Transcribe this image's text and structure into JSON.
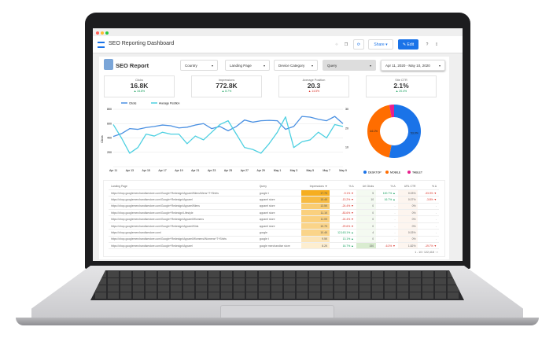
{
  "app": {
    "title": "SEO Reporting Dashboard",
    "share": "Share",
    "edit": "Edit"
  },
  "report": {
    "title": "SEO Report",
    "filters": [
      "Country",
      "Landing Page",
      "Device Category",
      "Query"
    ],
    "date_range": "Apr 11, 2020 - May 10, 2020"
  },
  "kpis": [
    {
      "label": "Clicks",
      "value": "16.8K",
      "delta": "▲ 34.8%",
      "color": "#0f9d58"
    },
    {
      "label": "Impressions",
      "value": "772.8K",
      "delta": "▲ 8.7%",
      "color": "#0f9d58"
    },
    {
      "label": "Average Position",
      "value": "20.3",
      "delta": "▲ 14.5%",
      "color": "#d93025"
    },
    {
      "label": "Site CTR",
      "value": "2.1%",
      "delta": "▲ 20.4%",
      "color": "#0f9d58"
    }
  ],
  "chart_data": [
    {
      "type": "line",
      "ylabel": "Clicks",
      "ylim": [
        0,
        800
      ],
      "y2lim": [
        0,
        30
      ],
      "yticks": [
        "200",
        "400",
        "600",
        "800"
      ],
      "y2ticks": [
        "10",
        "20",
        "30"
      ],
      "xticks": [
        "Apr 11",
        "Apr 13",
        "Apr 15",
        "Apr 17",
        "Apr 19",
        "Apr 21",
        "Apr 23",
        "Apr 25",
        "Apr 27",
        "Apr 29",
        "May 1",
        "May 3",
        "May 5",
        "May 7",
        "May 9"
      ],
      "legend": "top-left",
      "grid": true,
      "series": [
        {
          "name": "Clicks",
          "axis": "left",
          "color": "#4a90e2",
          "values": [
            420,
            460,
            530,
            520,
            545,
            560,
            580,
            570,
            540,
            550,
            580,
            600,
            530,
            560,
            500,
            560,
            650,
            620,
            640,
            645,
            640,
            520,
            560,
            700,
            690,
            660,
            640,
            700,
            600
          ]
        },
        {
          "name": "Average Position",
          "axis": "right",
          "color": "#4dd0e1",
          "values": [
            22,
            15,
            7,
            10,
            17,
            16,
            18,
            17,
            17,
            12,
            16,
            14,
            18,
            22,
            24,
            17,
            10,
            9,
            7,
            12,
            18,
            26,
            10,
            13,
            14,
            18,
            15,
            22,
            21
          ]
        }
      ]
    },
    {
      "type": "pie",
      "donut": true,
      "legend": "bottom",
      "slices": [
        {
          "name": "DESKTOP",
          "value": 53.0,
          "label": "53.0%",
          "color": "#1a73e8"
        },
        {
          "name": "MOBILE",
          "value": 44.1,
          "label": "44.1%",
          "color": "#ff6d00"
        },
        {
          "name": "TABLET",
          "value": 2.9,
          "label": "",
          "color": "#e91e8c"
        }
      ]
    }
  ],
  "table": {
    "headers": [
      "Landing Page",
      "Query",
      "Impressions ▼",
      "% Δ",
      "Url Clicks",
      "% Δ",
      "URL CTR",
      "% Δ"
    ],
    "rows": [
      [
        "https://shop.googlemerchandisestore.com/Google+Redesign/Apparel/Mens/Mens+T+Shirts",
        "google t",
        "17.7K",
        "-9.1% ▼",
        "5",
        "100.7% ▲",
        "0.03%",
        "-33.3% ▼"
      ],
      [
        "https://shop.googlemerchandisestore.com/Google+Redesign/Apparel",
        "apparel store",
        "15.4K",
        "-13.2% ▼",
        "10",
        "16.7% ▲",
        "0.07%",
        "-3.8% ▼"
      ],
      [
        "https://shop.googlemerchandisestore.com/Google+Redesign/Apparel/Mens",
        "apparel store",
        "13.5K",
        "-24.4% ▼",
        "0",
        "-",
        "0%",
        "-"
      ],
      [
        "https://shop.googlemerchandisestore.com/Google+Redesign/Lifestyle",
        "apparel store",
        "11.1K",
        "-83.6% ▼",
        "0",
        "-",
        "0%",
        "-"
      ],
      [
        "https://shop.googlemerchandisestore.com/Google+Redesign/Apparel/Womens",
        "apparel store",
        "11.0K",
        "-24.4% ▼",
        "0",
        "-",
        "0%",
        "-"
      ],
      [
        "https://shop.googlemerchandisestore.com/Google+Redesign/Apparel/Kids",
        "apparel store",
        "10.7K",
        "-29.6% ▼",
        "0",
        "-",
        "0%",
        "-"
      ],
      [
        "https://shop.googlemerchandisestore.com/",
        "google",
        "10.4K",
        "12,163.1% ▲",
        "4",
        "-",
        "0.03%",
        "-"
      ],
      [
        "https://shop.googlemerchandisestore.com/Google+Redesign/Apparel/Womens/Womens+T+Shirts",
        "google t",
        "9.5K",
        "13.1% ▲",
        "0",
        "-",
        "0%",
        "-"
      ],
      [
        "https://shop.googlemerchandisestore.com/Google+Redesign/Apparel",
        "google merchandise store",
        "8.2K",
        "16.7% ▲",
        "150",
        "-6.3% ▼",
        "1.82%",
        "-19.7% ▼"
      ]
    ],
    "pagination": "1 - 10 / 122,418"
  }
}
